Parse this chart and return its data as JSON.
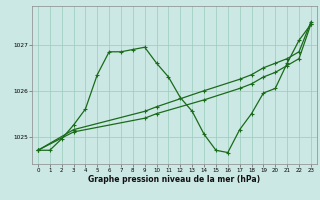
{
  "xlabel": "Graphe pression niveau de la mer (hPa)",
  "bg_color": "#cce8e4",
  "grid_color": "#99ccbb",
  "line_color": "#1a6b1a",
  "ylim": [
    1024.4,
    1027.85
  ],
  "xlim": [
    -0.5,
    23.5
  ],
  "yticks": [
    1025,
    1026,
    1027
  ],
  "xticks": [
    0,
    1,
    2,
    3,
    4,
    5,
    6,
    7,
    8,
    9,
    10,
    11,
    12,
    13,
    14,
    15,
    16,
    17,
    18,
    19,
    20,
    21,
    22,
    23
  ],
  "line1_x": [
    0,
    1,
    2,
    3,
    4,
    5,
    6,
    7,
    8,
    9,
    10,
    11,
    12,
    13,
    14,
    15,
    16,
    17,
    18,
    19,
    20,
    21,
    22,
    23
  ],
  "line1_y": [
    1024.7,
    1024.7,
    1024.95,
    1025.25,
    1025.6,
    1026.35,
    1026.85,
    1026.85,
    1026.9,
    1026.95,
    1026.6,
    1026.3,
    1025.85,
    1025.55,
    1025.05,
    1024.7,
    1024.65,
    1025.15,
    1025.5,
    1025.95,
    1026.05,
    1026.6,
    1027.1,
    1027.45
  ],
  "line2_x": [
    0,
    3,
    9,
    10,
    14,
    17,
    18,
    19,
    20,
    21,
    22,
    23
  ],
  "line2_y": [
    1024.7,
    1025.15,
    1025.55,
    1025.65,
    1026.0,
    1026.25,
    1026.35,
    1026.5,
    1026.6,
    1026.7,
    1026.85,
    1027.5
  ],
  "line3_x": [
    0,
    3,
    9,
    10,
    14,
    17,
    18,
    19,
    20,
    21,
    22,
    23
  ],
  "line3_y": [
    1024.7,
    1025.1,
    1025.4,
    1025.5,
    1025.8,
    1026.05,
    1026.15,
    1026.3,
    1026.4,
    1026.55,
    1026.7,
    1027.45
  ]
}
